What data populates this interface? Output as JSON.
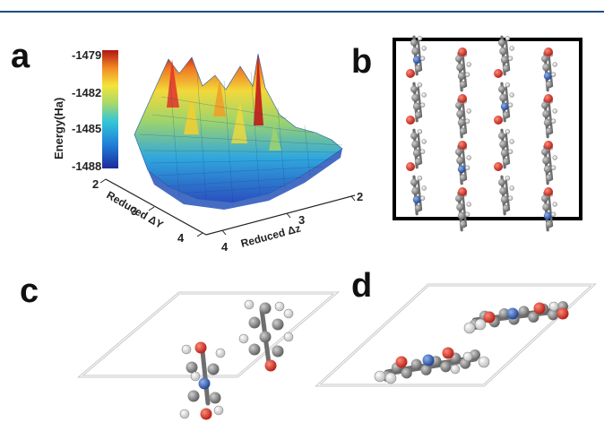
{
  "panels": {
    "a": {
      "letter": "a",
      "colorbar_label": "Energy(Ha)",
      "colorbar_ticks": [
        "-1479",
        "-1482",
        "-1485",
        "-1488"
      ],
      "axis_y_label": "Reduced ΔY",
      "axis_z_label": "Reduced Δz",
      "axis_y_ticks": [
        "2",
        "3",
        "4"
      ],
      "axis_z_ticks": [
        "4",
        "3",
        "2"
      ]
    },
    "b": {
      "letter": "b"
    },
    "c": {
      "letter": "c"
    },
    "d": {
      "letter": "d"
    }
  },
  "colors": {
    "rule": "#1f4e79",
    "carbon": "#8a8a8a",
    "oxygen": "#e0301e",
    "nitrogen": "#2c5fb8",
    "hydrogen": "#ffffff"
  }
}
